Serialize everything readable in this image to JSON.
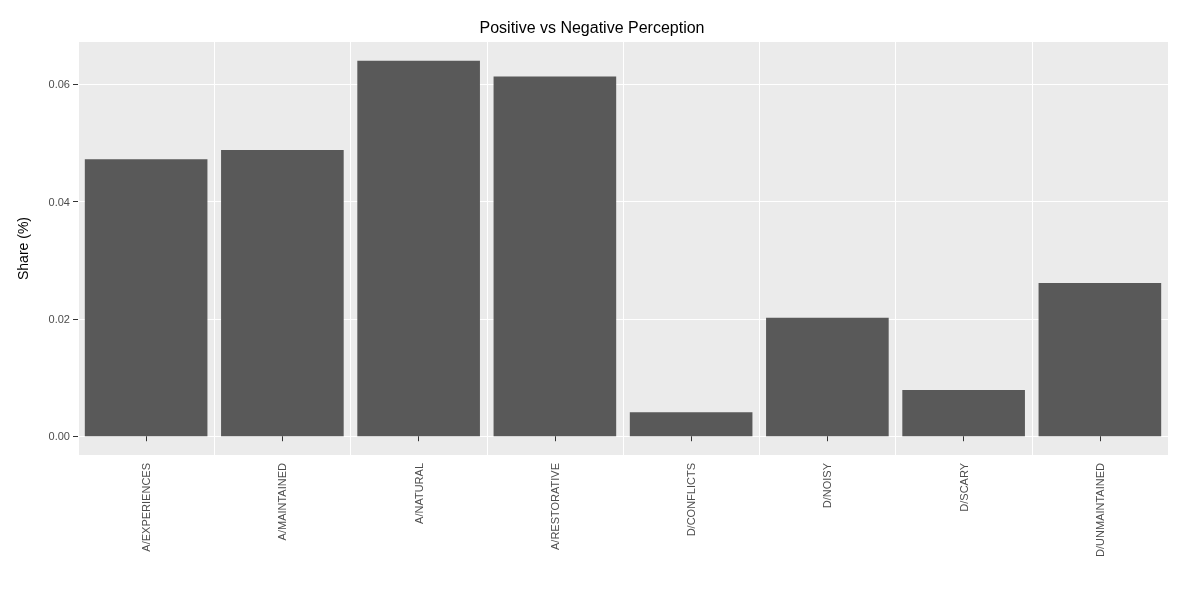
{
  "chart_data": {
    "type": "bar",
    "title": "Positive vs Negative Perception",
    "ylabel": "Share (%)",
    "categories": [
      "A/EXPERIENCES",
      "A/MAINTAINED",
      "A/NATURAL",
      "A/RESTORATIVE",
      "D/CONFLICTS",
      "D/NOISY",
      "D/SCARY",
      "D/UNMAINTAINED"
    ],
    "values": [
      0.0472,
      0.0488,
      0.064,
      0.0613,
      0.0041,
      0.0202,
      0.0079,
      0.0261
    ],
    "color": "#595959",
    "ylim": [
      -0.0032,
      0.0672
    ],
    "yticks": [
      {
        "value": 0,
        "label": "0.00"
      },
      {
        "value": 0.02,
        "label": "0.02"
      },
      {
        "value": 0.04,
        "label": "0.04"
      },
      {
        "value": 0.06,
        "label": "0.06"
      }
    ],
    "grid": true
  }
}
